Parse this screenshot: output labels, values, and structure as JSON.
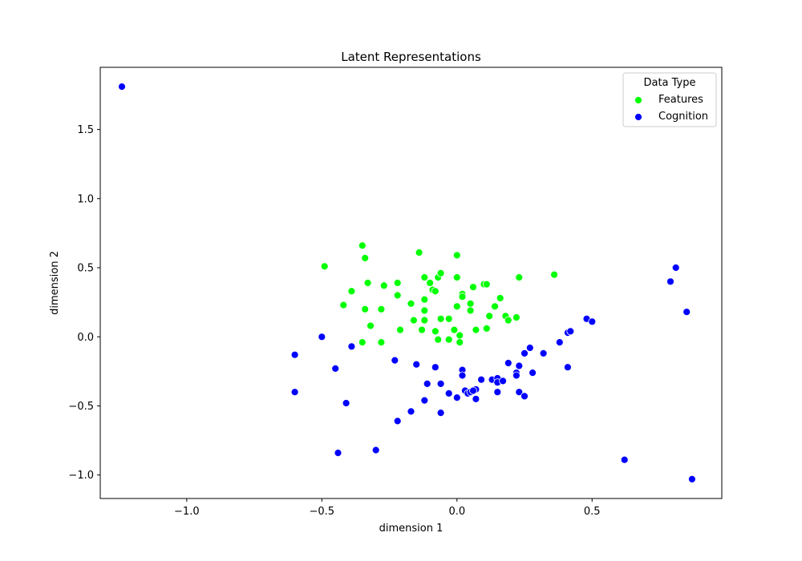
{
  "chart_data": {
    "type": "scatter",
    "title": "Latent Representations",
    "xlabel": "dimension 1",
    "ylabel": "dimension 2",
    "xlim": [
      -1.32,
      0.98
    ],
    "ylim": [
      -1.17,
      1.95
    ],
    "xticks": [
      -1.0,
      -0.5,
      0.0,
      0.5
    ],
    "xtick_labels": [
      "−1.0",
      "−0.5",
      "0.0",
      "0.5"
    ],
    "yticks": [
      -1.0,
      -0.5,
      0.0,
      0.5,
      1.0,
      1.5
    ],
    "ytick_labels": [
      "−1.0",
      "−0.5",
      "0.0",
      "0.5",
      "1.0",
      "1.5"
    ],
    "grid": false,
    "legend": {
      "title": "Data Type",
      "placement": "top-right"
    },
    "series": [
      {
        "name": "Features",
        "color": "#00ff00",
        "points": [
          [
            -0.35,
            0.66
          ],
          [
            -0.34,
            0.57
          ],
          [
            -0.49,
            0.51
          ],
          [
            -0.14,
            0.61
          ],
          [
            0.0,
            0.59
          ],
          [
            -0.39,
            0.33
          ],
          [
            -0.33,
            0.39
          ],
          [
            -0.27,
            0.37
          ],
          [
            -0.22,
            0.39
          ],
          [
            -0.12,
            0.43
          ],
          [
            -0.07,
            0.43
          ],
          [
            -0.06,
            0.46
          ],
          [
            -0.1,
            0.39
          ],
          [
            -0.09,
            0.34
          ],
          [
            -0.08,
            0.33
          ],
          [
            0.0,
            0.43
          ],
          [
            0.02,
            0.31
          ],
          [
            0.02,
            0.29
          ],
          [
            0.06,
            0.36
          ],
          [
            0.1,
            0.38
          ],
          [
            0.11,
            0.38
          ],
          [
            0.23,
            0.43
          ],
          [
            0.36,
            0.45
          ],
          [
            -0.42,
            0.23
          ],
          [
            -0.34,
            0.2
          ],
          [
            -0.28,
            0.2
          ],
          [
            -0.22,
            0.3
          ],
          [
            -0.17,
            0.24
          ],
          [
            -0.12,
            0.27
          ],
          [
            -0.12,
            0.19
          ],
          [
            -0.16,
            0.12
          ],
          [
            -0.12,
            0.12
          ],
          [
            -0.06,
            0.13
          ],
          [
            -0.03,
            0.13
          ],
          [
            0.0,
            0.22
          ],
          [
            0.05,
            0.24
          ],
          [
            0.05,
            0.19
          ],
          [
            0.14,
            0.22
          ],
          [
            0.16,
            0.28
          ],
          [
            0.12,
            0.15
          ],
          [
            0.18,
            0.15
          ],
          [
            0.19,
            0.12
          ],
          [
            0.22,
            0.14
          ],
          [
            -0.32,
            0.08
          ],
          [
            -0.21,
            0.05
          ],
          [
            -0.13,
            0.05
          ],
          [
            -0.08,
            0.04
          ],
          [
            -0.01,
            0.05
          ],
          [
            0.01,
            0.01
          ],
          [
            0.07,
            0.05
          ],
          [
            0.11,
            0.06
          ],
          [
            -0.35,
            -0.04
          ],
          [
            -0.28,
            -0.04
          ],
          [
            -0.07,
            -0.02
          ],
          [
            -0.03,
            -0.02
          ],
          [
            0.01,
            -0.04
          ]
        ]
      },
      {
        "name": "Cognition",
        "color": "#0000ff",
        "points": [
          [
            -1.24,
            1.81
          ],
          [
            -0.6,
            -0.13
          ],
          [
            -0.5,
            0.0
          ],
          [
            -0.39,
            -0.07
          ],
          [
            -0.45,
            -0.23
          ],
          [
            -0.6,
            -0.4
          ],
          [
            -0.41,
            -0.48
          ],
          [
            -0.44,
            -0.84
          ],
          [
            -0.3,
            -0.82
          ],
          [
            -0.23,
            -0.17
          ],
          [
            -0.22,
            -0.61
          ],
          [
            -0.17,
            -0.54
          ],
          [
            -0.15,
            -0.2
          ],
          [
            -0.11,
            -0.34
          ],
          [
            -0.12,
            -0.46
          ],
          [
            -0.08,
            -0.22
          ],
          [
            -0.06,
            -0.34
          ],
          [
            -0.06,
            -0.55
          ],
          [
            -0.03,
            -0.41
          ],
          [
            0.0,
            -0.44
          ],
          [
            0.02,
            -0.24
          ],
          [
            0.02,
            -0.28
          ],
          [
            0.03,
            -0.39
          ],
          [
            0.04,
            -0.41
          ],
          [
            0.05,
            -0.4
          ],
          [
            0.07,
            -0.38
          ],
          [
            0.06,
            -0.39
          ],
          [
            0.07,
            -0.45
          ],
          [
            0.09,
            -0.31
          ],
          [
            0.13,
            -0.31
          ],
          [
            0.15,
            -0.3
          ],
          [
            0.15,
            -0.33
          ],
          [
            0.15,
            -0.4
          ],
          [
            0.17,
            -0.32
          ],
          [
            0.19,
            -0.19
          ],
          [
            0.22,
            -0.26
          ],
          [
            0.22,
            -0.28
          ],
          [
            0.23,
            -0.21
          ],
          [
            0.23,
            -0.4
          ],
          [
            0.25,
            -0.43
          ],
          [
            0.25,
            -0.12
          ],
          [
            0.27,
            -0.08
          ],
          [
            0.28,
            -0.26
          ],
          [
            0.32,
            -0.12
          ],
          [
            0.38,
            -0.04
          ],
          [
            0.41,
            0.03
          ],
          [
            0.42,
            0.04
          ],
          [
            0.41,
            -0.22
          ],
          [
            0.48,
            0.13
          ],
          [
            0.5,
            0.11
          ],
          [
            0.62,
            -0.89
          ],
          [
            0.79,
            0.4
          ],
          [
            0.81,
            0.5
          ],
          [
            0.85,
            0.18
          ],
          [
            0.87,
            -1.03
          ]
        ]
      }
    ]
  }
}
